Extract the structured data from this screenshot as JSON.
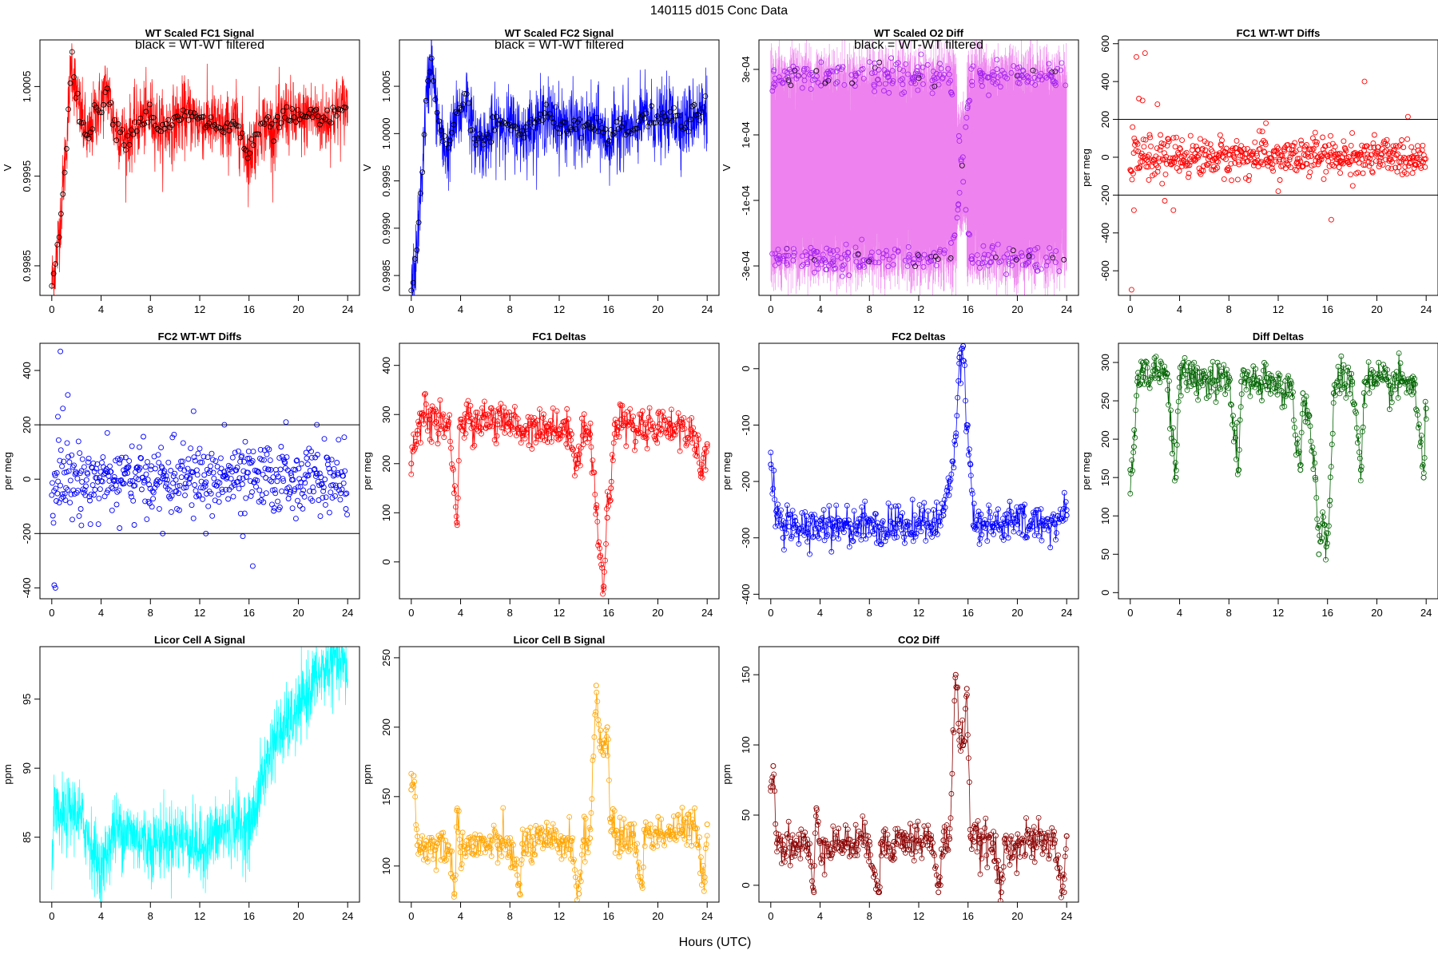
{
  "figure_title": "140115   d015   Conc Data",
  "x_label": "Hours (UTC)",
  "annotation": "black = WT-WT filtered",
  "chart_data": [
    {
      "name": "wt-fc1",
      "type": "line",
      "title": "WT Scaled FC1 Signal",
      "ylabel": "V",
      "color": "#ff0000",
      "xlim": [
        0,
        24
      ],
      "ylim": [
        0.99817,
        1.00102
      ],
      "yticks": [
        {
          "v": 0.9985,
          "t": "0.9985"
        },
        {
          "v": 0.9995,
          "t": "0.9995"
        },
        {
          "v": 1.0005,
          "t": "1.0005"
        }
      ],
      "x": [
        0,
        0.4,
        0.8,
        1.2,
        1.6,
        2,
        2.5,
        3,
        3.5,
        4,
        4.5,
        5,
        6,
        7,
        8,
        9,
        10,
        11,
        12,
        13,
        14,
        15,
        16,
        17,
        18,
        19,
        20,
        21,
        22,
        23,
        24
      ],
      "y": [
        0.9983,
        0.9986,
        0.9992,
        0.9999,
        1.0008,
        1.0004,
        1.0001,
        0.9999,
        1.0002,
        1.0003,
        1.0005,
        1.0001,
        0.9999,
        1.0001,
        1.0002,
        1.0,
        1.0001,
        1.0002,
        1.0001,
        1.0001,
        1.0,
        1.0001,
        0.9997,
        1.0001,
        1.0,
        1.0002,
        1.0001,
        1.0002,
        1.0001,
        1.0002,
        1.0003
      ],
      "annotated": true
    },
    {
      "name": "wt-fc2",
      "type": "line",
      "title": "WT Scaled FC2 Signal",
      "ylabel": "V",
      "color": "#0000ff",
      "xlim": [
        0,
        24
      ],
      "ylim": [
        0.99829,
        1.00099
      ],
      "yticks": [
        {
          "v": 0.9985,
          "t": "0.9985"
        },
        {
          "v": 0.999,
          "t": "0.9990"
        },
        {
          "v": 0.9995,
          "t": "0.9995"
        },
        {
          "v": 1.0,
          "t": "1.0000"
        },
        {
          "v": 1.0005,
          "t": "1.0005"
        }
      ],
      "x": [
        0,
        0.4,
        0.8,
        1.2,
        1.6,
        2,
        2.5,
        3,
        3.5,
        4,
        4.5,
        5,
        6,
        7,
        8,
        9,
        10,
        11,
        12,
        13,
        14,
        15,
        16,
        17,
        18,
        19,
        20,
        21,
        22,
        23,
        24
      ],
      "y": [
        0.9983,
        0.9987,
        0.9994,
        1.0003,
        1.0008,
        1.0003,
        0.9999,
        0.9998,
        1.0001,
        1.0002,
        1.0004,
        1.0,
        0.9999,
        1.0001,
        1.0001,
        1.0,
        1.0001,
        1.0002,
        1.0001,
        1.0001,
        1.0,
        1.0001,
        0.9999,
        1.0001,
        1.0,
        1.0002,
        1.0001,
        1.0002,
        1.0001,
        1.0002,
        1.0003
      ],
      "annotated": true
    },
    {
      "name": "wt-o2-diff",
      "type": "line",
      "title": "WT Scaled O2 Diff",
      "ylabel": "V",
      "color": "#ee82ee",
      "point_color": "#a020f0",
      "xlim": [
        0,
        24
      ],
      "ylim": [
        -0.00039,
        0.00039
      ],
      "yticks": [
        {
          "v": -0.0003,
          "t": "-3e-04"
        },
        {
          "v": -0.0001,
          "t": "-1e-04"
        },
        {
          "v": 0.0001,
          "t": "1e-04"
        },
        {
          "v": 0.0003,
          "t": "3e-04"
        }
      ],
      "x": [
        0,
        2,
        4,
        6,
        8,
        10,
        12,
        14,
        15,
        15.5,
        16,
        18,
        20,
        22,
        24
      ],
      "y": [
        0.0003,
        0.00028,
        0.00026,
        0.00029,
        0.00027,
        0.00028,
        0.00029,
        0.00028,
        0.0002,
        0.0,
        -0.0002,
        -0.00028,
        -0.00029,
        -0.00027,
        -0.00028
      ],
      "annotated": true
    },
    {
      "name": "fc1-wtwt-diffs",
      "type": "scatter",
      "title": "FC1 WT-WT Diffs",
      "ylabel": "per meg",
      "color": "#ff0000",
      "xlim": [
        0,
        24
      ],
      "ylim": [
        -730,
        620
      ],
      "yticks": [
        {
          "v": -600,
          "t": "-600"
        },
        {
          "v": -400,
          "t": "-400"
        },
        {
          "v": -200,
          "t": "-200"
        },
        {
          "v": 0,
          "t": "0"
        },
        {
          "v": 200,
          "t": "200"
        },
        {
          "v": 400,
          "t": "400"
        },
        {
          "v": 600,
          "t": "600"
        }
      ],
      "hlines": [
        200,
        -200
      ],
      "x": [
        0.1,
        0.3,
        0.5,
        0.7,
        1.0,
        1.2,
        1.5,
        2.2,
        2.8,
        3.5,
        4.2,
        5.5,
        7,
        9,
        11,
        12,
        13.5,
        15,
        16.3,
        17,
        19,
        21,
        23
      ],
      "y": [
        -700,
        -280,
        530,
        310,
        300,
        550,
        -120,
        280,
        -230,
        -280,
        90,
        40,
        -20,
        60,
        180,
        -180,
        -70,
        130,
        -330,
        20,
        400,
        -10,
        30
      ],
      "noise": {
        "mean": 0,
        "sd": 50
      }
    },
    {
      "name": "fc2-wtwt-diffs",
      "type": "scatter",
      "title": "FC2 WT-WT Diffs",
      "ylabel": "per meg",
      "color": "#0000ff",
      "xlim": [
        0,
        24
      ],
      "ylim": [
        -440,
        500
      ],
      "yticks": [
        {
          "v": -400,
          "t": "-400"
        },
        {
          "v": -200,
          "t": "-200"
        },
        {
          "v": 0,
          "t": "0"
        },
        {
          "v": 200,
          "t": "200"
        },
        {
          "v": 400,
          "t": "400"
        }
      ],
      "hlines": [
        200,
        -200
      ],
      "x": [
        0.2,
        0.3,
        0.5,
        0.7,
        0.9,
        1.3,
        2.4,
        4.5,
        5.5,
        9,
        11.5,
        12.5,
        14,
        15.5,
        16.3,
        19,
        21.5
      ],
      "y": [
        -390,
        -400,
        230,
        470,
        260,
        310,
        -170,
        170,
        -180,
        -200,
        250,
        -200,
        200,
        -210,
        -320,
        210,
        200
      ],
      "noise": {
        "mean": 0,
        "sd": 60
      }
    },
    {
      "name": "fc1-deltas",
      "type": "line",
      "title": "FC1 Deltas",
      "ylabel": "per meg",
      "color": "#ff0000",
      "markers": true,
      "xlim": [
        0,
        24
      ],
      "ylim": [
        -75,
        445
      ],
      "yticks": [
        {
          "v": 0,
          "t": "0"
        },
        {
          "v": 100,
          "t": "100"
        },
        {
          "v": 200,
          "t": "200"
        },
        {
          "v": 300,
          "t": "300"
        },
        {
          "v": 400,
          "t": "400"
        }
      ],
      "x": [
        0,
        0.5,
        1,
        1.5,
        2,
        3,
        3.7,
        4,
        5,
        6,
        7,
        8,
        9,
        10,
        11,
        12,
        13,
        13.5,
        14,
        14.5,
        15,
        15.3,
        15.6,
        15.9,
        16.2,
        16.5,
        17,
        18,
        19,
        20,
        21,
        22,
        23,
        23.5,
        24
      ],
      "y": [
        200,
        260,
        300,
        290,
        285,
        280,
        80,
        290,
        280,
        300,
        280,
        285,
        270,
        280,
        275,
        270,
        260,
        200,
        280,
        260,
        110,
        10,
        -50,
        90,
        150,
        280,
        290,
        270,
        280,
        275,
        280,
        270,
        260,
        180,
        240
      ]
    },
    {
      "name": "fc2-deltas",
      "type": "line",
      "title": "FC2 Deltas",
      "ylabel": "per meg",
      "color": "#0000ff",
      "markers": true,
      "xlim": [
        0,
        24
      ],
      "ylim": [
        -408,
        45
      ],
      "yticks": [
        {
          "v": -400,
          "t": "-400"
        },
        {
          "v": -300,
          "t": "-300"
        },
        {
          "v": -200,
          "t": "-200"
        },
        {
          "v": -100,
          "t": "-100"
        },
        {
          "v": 0,
          "t": "0"
        }
      ],
      "x": [
        0,
        0.5,
        1,
        1.5,
        2,
        3,
        4,
        5,
        6,
        7,
        8,
        9,
        10,
        11,
        12,
        13,
        14,
        14.5,
        15,
        15.3,
        15.6,
        15.9,
        16.2,
        16.5,
        17,
        18,
        19,
        20,
        21,
        22,
        23,
        24
      ],
      "y": [
        -170,
        -250,
        -300,
        -280,
        -270,
        -290,
        -270,
        -280,
        -275,
        -280,
        -270,
        -285,
        -275,
        -280,
        -270,
        -280,
        -260,
        -200,
        -120,
        20,
        40,
        -100,
        -170,
        -280,
        -270,
        -280,
        -275,
        -270,
        -280,
        -270,
        -275,
        -260
      ]
    },
    {
      "name": "diff-deltas",
      "type": "line",
      "title": "Diff Deltas",
      "ylabel": "per meg",
      "color": "#006400",
      "markers": true,
      "xlim": [
        0,
        24
      ],
      "ylim": [
        -8,
        325
      ],
      "yticks": [
        {
          "v": 0,
          "t": "0"
        },
        {
          "v": 50,
          "t": "50"
        },
        {
          "v": 100,
          "t": "100"
        },
        {
          "v": 150,
          "t": "150"
        },
        {
          "v": 200,
          "t": "200"
        },
        {
          "v": 250,
          "t": "250"
        },
        {
          "v": 300,
          "t": "300"
        }
      ],
      "x": [
        0,
        0.3,
        0.6,
        1,
        2,
        3,
        3.7,
        4,
        5,
        6,
        7,
        8,
        8.8,
        9,
        10,
        11,
        12,
        13,
        13.8,
        14,
        14.5,
        15,
        15.3,
        15.6,
        15.9,
        16.2,
        16.5,
        17,
        18,
        18.7,
        19,
        20,
        21,
        22,
        23,
        23.8,
        24
      ],
      "y": [
        160,
        190,
        280,
        290,
        290,
        285,
        150,
        280,
        282,
        278,
        276,
        275,
        160,
        275,
        272,
        270,
        270,
        268,
        160,
        260,
        230,
        150,
        50,
        90,
        60,
        120,
        260,
        280,
        275,
        160,
        275,
        272,
        270,
        275,
        272,
        150,
        240
      ]
    },
    {
      "name": "licor-a",
      "type": "line",
      "title": "Licor Cell A Signal",
      "ylabel": "ppm",
      "color": "#00ffff",
      "xlim": [
        0,
        24
      ],
      "ylim": [
        80.3,
        98.8
      ],
      "yticks": [
        {
          "v": 85,
          "t": "85"
        },
        {
          "v": 90,
          "t": "90"
        },
        {
          "v": 95,
          "t": "95"
        }
      ],
      "x": [
        0,
        0.2,
        0.5,
        1,
        2,
        3,
        4,
        5,
        6,
        7,
        8,
        9,
        10,
        11,
        12,
        13,
        14,
        15,
        16,
        16.5,
        17,
        18,
        19,
        20,
        21,
        22,
        23,
        24
      ],
      "y": [
        83.5,
        87,
        86,
        86.5,
        87,
        85,
        82.5,
        85.5,
        85.5,
        85,
        84.5,
        84.8,
        85,
        85,
        84,
        85,
        85.5,
        86,
        85.5,
        87,
        89,
        92,
        93,
        94,
        96,
        97,
        98,
        97
      ]
    },
    {
      "name": "licor-b",
      "type": "line",
      "title": "Licor Cell B Signal",
      "ylabel": "ppm",
      "color": "#ffa500",
      "markers": true,
      "xlim": [
        0,
        24
      ],
      "ylim": [
        74,
        258
      ],
      "yticks": [
        {
          "v": 100,
          "t": "100"
        },
        {
          "v": 150,
          "t": "150"
        },
        {
          "v": 200,
          "t": "200"
        },
        {
          "v": 250,
          "t": "250"
        }
      ],
      "x": [
        0,
        0.2,
        0.5,
        1,
        2,
        3,
        3.5,
        3.7,
        4,
        5,
        6,
        7,
        8,
        8.8,
        9,
        10,
        11,
        12,
        13,
        13.6,
        14,
        14.5,
        15,
        15.3,
        15.6,
        15.9,
        16.2,
        16.5,
        17,
        18,
        18.7,
        19,
        20,
        21,
        22,
        23,
        23.8,
        24
      ],
      "y": [
        155,
        165,
        115,
        113,
        114,
        115,
        80,
        140,
        114,
        114,
        115,
        115,
        116,
        80,
        116,
        116,
        117,
        117,
        118,
        80,
        118,
        120,
        230,
        190,
        180,
        200,
        125,
        122,
        121,
        122,
        88,
        124,
        124,
        125,
        126,
        127,
        92,
        130
      ]
    },
    {
      "name": "co2-diff",
      "type": "line",
      "title": "CO2 Diff",
      "ylabel": "ppm",
      "color": "#8b0000",
      "markers": true,
      "xlim": [
        0,
        24
      ],
      "ylim": [
        -12,
        170
      ],
      "yticks": [
        {
          "v": 0,
          "t": "0"
        },
        {
          "v": 50,
          "t": "50"
        },
        {
          "v": 100,
          "t": "100"
        },
        {
          "v": 150,
          "t": "150"
        }
      ],
      "x": [
        0,
        0.2,
        0.5,
        1,
        2,
        3,
        3.5,
        3.7,
        4,
        5,
        6,
        7,
        8,
        8.8,
        9,
        10,
        11,
        12,
        13,
        13.6,
        14,
        14.5,
        15,
        15.3,
        15.6,
        15.9,
        16.2,
        16.5,
        17,
        18,
        18.7,
        19,
        20,
        21,
        22,
        23,
        23.8,
        24
      ],
      "y": [
        70,
        85,
        30,
        29,
        29,
        29,
        -5,
        55,
        30,
        30,
        30,
        30,
        31,
        -5,
        31,
        31,
        32,
        32,
        33,
        -5,
        32,
        33,
        150,
        110,
        100,
        140,
        35,
        31,
        30,
        30,
        -5,
        30,
        30,
        30,
        30,
        30,
        -5,
        35
      ]
    }
  ]
}
